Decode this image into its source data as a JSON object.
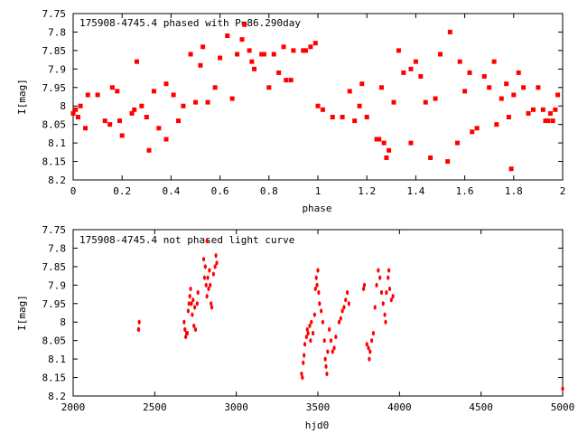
{
  "chart_data": [
    {
      "type": "scatter",
      "title": "175908-4745.4 phased with P=86.290day",
      "xlabel": "phase",
      "ylabel": "I[mag]",
      "xlim": [
        0,
        2
      ],
      "ylim": [
        7.75,
        8.2
      ],
      "y_inverted": true,
      "x_ticks": [
        "0",
        "0.2",
        "0.4",
        "0.6",
        "0.8",
        "1",
        "1.2",
        "1.4",
        "1.6",
        "1.8",
        "2"
      ],
      "y_ticks": [
        "7.75",
        "7.8",
        "7.85",
        "7.9",
        "7.95",
        "8",
        "8.05",
        "8.1",
        "8.15",
        "8.2"
      ],
      "grid": false,
      "marker_color": "#ff0000",
      "series": [
        {
          "points": [
            [
              0.0,
              8.02
            ],
            [
              0.01,
              8.01
            ],
            [
              0.02,
              8.03
            ],
            [
              0.03,
              8.0
            ],
            [
              0.05,
              8.06
            ],
            [
              0.06,
              7.97
            ],
            [
              0.1,
              7.97
            ],
            [
              0.13,
              8.04
            ],
            [
              0.15,
              8.05
            ],
            [
              0.16,
              7.95
            ],
            [
              0.18,
              7.96
            ],
            [
              0.19,
              8.04
            ],
            [
              0.2,
              8.08
            ],
            [
              0.24,
              8.02
            ],
            [
              0.25,
              8.01
            ],
            [
              0.26,
              7.88
            ],
            [
              0.28,
              8.0
            ],
            [
              0.3,
              8.03
            ],
            [
              0.31,
              8.12
            ],
            [
              0.33,
              7.96
            ],
            [
              0.35,
              8.06
            ],
            [
              0.38,
              8.09
            ],
            [
              0.38,
              7.94
            ],
            [
              0.41,
              7.97
            ],
            [
              0.43,
              8.04
            ],
            [
              0.45,
              8.0
            ],
            [
              0.48,
              7.86
            ],
            [
              0.5,
              7.99
            ],
            [
              0.52,
              7.89
            ],
            [
              0.53,
              7.84
            ],
            [
              0.55,
              7.99
            ],
            [
              0.58,
              7.95
            ],
            [
              0.6,
              7.87
            ],
            [
              0.63,
              7.81
            ],
            [
              0.65,
              7.98
            ],
            [
              0.67,
              7.86
            ],
            [
              0.69,
              7.82
            ],
            [
              0.7,
              7.78
            ],
            [
              0.72,
              7.85
            ],
            [
              0.73,
              7.88
            ],
            [
              0.74,
              7.9
            ],
            [
              0.77,
              7.86
            ],
            [
              0.78,
              7.86
            ],
            [
              0.8,
              7.95
            ],
            [
              0.82,
              7.86
            ],
            [
              0.84,
              7.91
            ],
            [
              0.86,
              7.84
            ],
            [
              0.87,
              7.93
            ],
            [
              0.89,
              7.93
            ],
            [
              0.9,
              7.85
            ],
            [
              0.94,
              7.85
            ],
            [
              0.95,
              7.85
            ],
            [
              0.97,
              7.84
            ],
            [
              0.99,
              7.83
            ],
            [
              1.0,
              8.0
            ],
            [
              1.02,
              8.01
            ],
            [
              1.06,
              8.03
            ],
            [
              1.1,
              8.03
            ],
            [
              1.13,
              7.96
            ],
            [
              1.15,
              8.04
            ],
            [
              1.17,
              8.0
            ],
            [
              1.18,
              7.94
            ],
            [
              1.2,
              8.03
            ],
            [
              1.24,
              8.09
            ],
            [
              1.25,
              8.09
            ],
            [
              1.26,
              7.95
            ],
            [
              1.27,
              8.1
            ],
            [
              1.28,
              8.14
            ],
            [
              1.29,
              8.12
            ],
            [
              1.31,
              7.99
            ],
            [
              1.33,
              7.85
            ],
            [
              1.35,
              7.91
            ],
            [
              1.38,
              7.9
            ],
            [
              1.38,
              8.1
            ],
            [
              1.4,
              7.88
            ],
            [
              1.42,
              7.92
            ],
            [
              1.44,
              7.99
            ],
            [
              1.46,
              8.14
            ],
            [
              1.48,
              7.98
            ],
            [
              1.5,
              7.86
            ],
            [
              1.53,
              8.15
            ],
            [
              1.54,
              7.8
            ],
            [
              1.57,
              8.1
            ],
            [
              1.58,
              7.88
            ],
            [
              1.6,
              7.96
            ],
            [
              1.62,
              7.91
            ],
            [
              1.63,
              8.07
            ],
            [
              1.65,
              8.06
            ],
            [
              1.68,
              7.92
            ],
            [
              1.7,
              7.95
            ],
            [
              1.72,
              7.88
            ],
            [
              1.73,
              8.05
            ],
            [
              1.75,
              7.98
            ],
            [
              1.77,
              7.94
            ],
            [
              1.78,
              8.03
            ],
            [
              1.79,
              8.17
            ],
            [
              1.8,
              7.97
            ],
            [
              1.82,
              7.91
            ],
            [
              1.84,
              7.95
            ],
            [
              1.86,
              8.02
            ],
            [
              1.88,
              8.01
            ],
            [
              1.9,
              7.95
            ],
            [
              1.92,
              8.01
            ],
            [
              1.93,
              8.04
            ],
            [
              1.94,
              8.04
            ],
            [
              1.95,
              8.02
            ],
            [
              1.96,
              8.04
            ],
            [
              1.97,
              8.01
            ],
            [
              1.98,
              7.97
            ]
          ]
        }
      ]
    },
    {
      "type": "scatter",
      "title": "175908-4745.4 not phased light curve",
      "xlabel": "hjd0",
      "ylabel": "I[mag]",
      "xlim": [
        2000,
        5000
      ],
      "ylim": [
        7.75,
        8.2
      ],
      "y_inverted": true,
      "x_ticks": [
        "2000",
        "2500",
        "3000",
        "3500",
        "4000",
        "4500",
        "5000"
      ],
      "y_ticks": [
        "7.75",
        "7.8",
        "7.85",
        "7.9",
        "7.95",
        "8",
        "8.05",
        "8.1",
        "8.15",
        "8.2"
      ],
      "grid": false,
      "marker_color": "#ff0000",
      "series": [
        {
          "points": [
            [
              2400,
              8.02
            ],
            [
              2402,
              8.02
            ],
            [
              2405,
              8.0
            ],
            [
              2680,
              8.0
            ],
            [
              2685,
              8.02
            ],
            [
              2690,
              8.04
            ],
            [
              2695,
              8.03
            ],
            [
              2700,
              8.03
            ],
            [
              2705,
              7.97
            ],
            [
              2710,
              7.95
            ],
            [
              2715,
              7.93
            ],
            [
              2720,
              7.91
            ],
            [
              2725,
              7.95
            ],
            [
              2730,
              7.98
            ],
            [
              2735,
              7.94
            ],
            [
              2740,
              8.01
            ],
            [
              2745,
              7.96
            ],
            [
              2750,
              8.02
            ],
            [
              2760,
              7.95
            ],
            [
              2765,
              7.92
            ],
            [
              2800,
              7.83
            ],
            [
              2805,
              7.88
            ],
            [
              2810,
              7.85
            ],
            [
              2815,
              7.9
            ],
            [
              2820,
              7.93
            ],
            [
              2825,
              7.88
            ],
            [
              2830,
              7.91
            ],
            [
              2835,
              7.86
            ],
            [
              2840,
              7.9
            ],
            [
              2845,
              7.95
            ],
            [
              2850,
              7.96
            ],
            [
              2860,
              7.87
            ],
            [
              2870,
              7.85
            ],
            [
              2875,
              7.82
            ],
            [
              2880,
              7.84
            ],
            [
              2820,
              7.78
            ],
            [
              3400,
              8.14
            ],
            [
              3405,
              8.15
            ],
            [
              3410,
              8.11
            ],
            [
              3415,
              8.09
            ],
            [
              3420,
              8.06
            ],
            [
              3430,
              8.04
            ],
            [
              3435,
              8.02
            ],
            [
              3440,
              8.03
            ],
            [
              3450,
              8.01
            ],
            [
              3455,
              8.05
            ],
            [
              3460,
              8.0
            ],
            [
              3470,
              8.03
            ],
            [
              3480,
              7.98
            ],
            [
              3485,
              7.91
            ],
            [
              3490,
              7.88
            ],
            [
              3495,
              7.9
            ],
            [
              3500,
              7.86
            ],
            [
              3505,
              7.92
            ],
            [
              3510,
              7.95
            ],
            [
              3520,
              7.97
            ],
            [
              3530,
              8.0
            ],
            [
              3540,
              8.05
            ],
            [
              3545,
              8.1
            ],
            [
              3550,
              8.12
            ],
            [
              3555,
              8.14
            ],
            [
              3560,
              8.08
            ],
            [
              3570,
              8.02
            ],
            [
              3580,
              8.05
            ],
            [
              3590,
              8.08
            ],
            [
              3600,
              8.07
            ],
            [
              3610,
              8.04
            ],
            [
              3630,
              8.0
            ],
            [
              3640,
              7.99
            ],
            [
              3650,
              7.97
            ],
            [
              3660,
              7.96
            ],
            [
              3670,
              7.94
            ],
            [
              3680,
              7.92
            ],
            [
              3690,
              7.95
            ],
            [
              3780,
              7.91
            ],
            [
              3785,
              7.9
            ],
            [
              3800,
              8.06
            ],
            [
              3810,
              8.07
            ],
            [
              3815,
              8.1
            ],
            [
              3820,
              8.08
            ],
            [
              3830,
              8.05
            ],
            [
              3840,
              8.03
            ],
            [
              3850,
              7.96
            ],
            [
              3860,
              7.9
            ],
            [
              3870,
              7.86
            ],
            [
              3880,
              7.88
            ],
            [
              3890,
              7.92
            ],
            [
              3900,
              7.95
            ],
            [
              3910,
              7.98
            ],
            [
              3915,
              8.0
            ],
            [
              3920,
              7.92
            ],
            [
              3930,
              7.88
            ],
            [
              3935,
              7.86
            ],
            [
              3940,
              7.91
            ],
            [
              3950,
              7.94
            ],
            [
              3960,
              7.93
            ],
            [
              5000,
              8.18
            ]
          ]
        }
      ]
    }
  ]
}
